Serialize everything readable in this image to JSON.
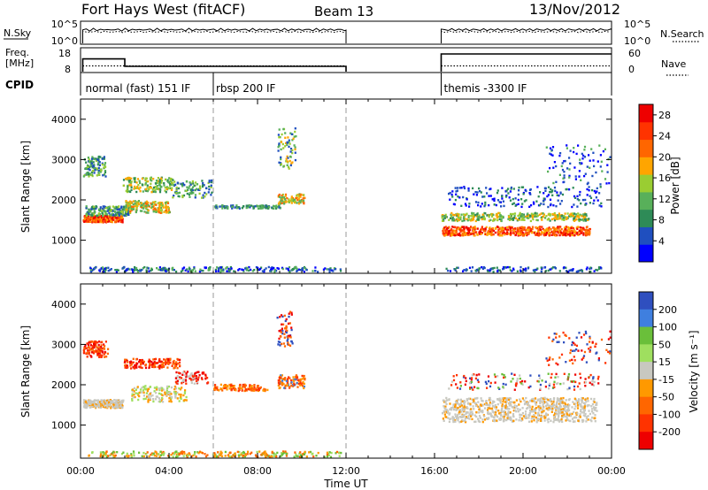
{
  "header": {
    "station": "Fort Hays West (fitACF)",
    "beam": "Beam 13",
    "date": "13/Nov/2012"
  },
  "colors": {
    "power_scale": [
      "#0000ff",
      "#1f4fbf",
      "#2e8b57",
      "#58b05a",
      "#9acd32",
      "#ffa500",
      "#ff6600",
      "#ff3300",
      "#ee0000"
    ],
    "velocity_scale": [
      "#2f4fbf",
      "#3f7fdf",
      "#6abf3a",
      "#9fdf5f",
      "#c8c8c0",
      "#ff9900",
      "#ff6600",
      "#ff3300",
      "#ee0000"
    ]
  },
  "chart_data": [
    {
      "type": "line",
      "panel": "nsky-nsearch",
      "left_label": "N.Sky",
      "right_label": "N.Search",
      "left_ticks": [
        "10^5",
        "10^0"
      ],
      "right_ticks": [
        "10^5",
        "10^0"
      ],
      "xlim": [
        0,
        24
      ],
      "segments": [
        [
          0.1,
          12.0
        ],
        [
          16.3,
          24.0
        ]
      ]
    },
    {
      "type": "line",
      "panel": "freq-nave",
      "left_label": [
        "Freq.",
        "[MHz]"
      ],
      "right_label": "Nave",
      "left_ticks": [
        "18",
        "8"
      ],
      "right_ticks": [
        "60",
        "0"
      ],
      "xlim": [
        0,
        24
      ],
      "freq_segments": [
        [
          0.1,
          2.0,
          13.5
        ],
        [
          2.0,
          12.0,
          10.5
        ],
        [
          16.3,
          24.0,
          15.5
        ]
      ],
      "nave_segments": [
        [
          0.1,
          12.0,
          16
        ],
        [
          16.3,
          24.0,
          16
        ]
      ]
    },
    {
      "type": "table",
      "panel": "cpid",
      "label": "CPID",
      "modes": [
        {
          "start_hour": 0.1,
          "label": "normal (fast) 151 IF"
        },
        {
          "start_hour": 6.0,
          "label": "rbsp 200 IF"
        },
        {
          "start_hour": 16.3,
          "label": "themis -3300 IF"
        }
      ]
    },
    {
      "type": "heatmap",
      "panel": "power",
      "ylabel": "Slant Range [km]",
      "y_ticks": [
        1000,
        2000,
        3000,
        4000
      ],
      "ylim": [
        180,
        4500
      ],
      "xlim": [
        0,
        24
      ],
      "colorbar_label": "Power [dB]",
      "colorbar_ticks": [
        4,
        8,
        12,
        16,
        20,
        24,
        28
      ],
      "colorbar_range": [
        0,
        30
      ],
      "dashed_hours": [
        6,
        12
      ]
    },
    {
      "type": "heatmap",
      "panel": "velocity",
      "ylabel": "Slant Range [km]",
      "y_ticks": [
        1000,
        2000,
        3000,
        4000
      ],
      "ylim": [
        180,
        4500
      ],
      "xlim": [
        0,
        24
      ],
      "colorbar_label": "Velocity [m s⁻¹]",
      "colorbar_ticks": [
        200,
        100,
        50,
        15,
        -15,
        -50,
        -100,
        -200
      ],
      "dashed_hours": [
        6,
        12
      ],
      "x_ticks": [
        "00:00",
        "04:00",
        "08:00",
        "12:00",
        "16:00",
        "20:00",
        "00:00"
      ],
      "xlabel": "Time UT"
    }
  ]
}
